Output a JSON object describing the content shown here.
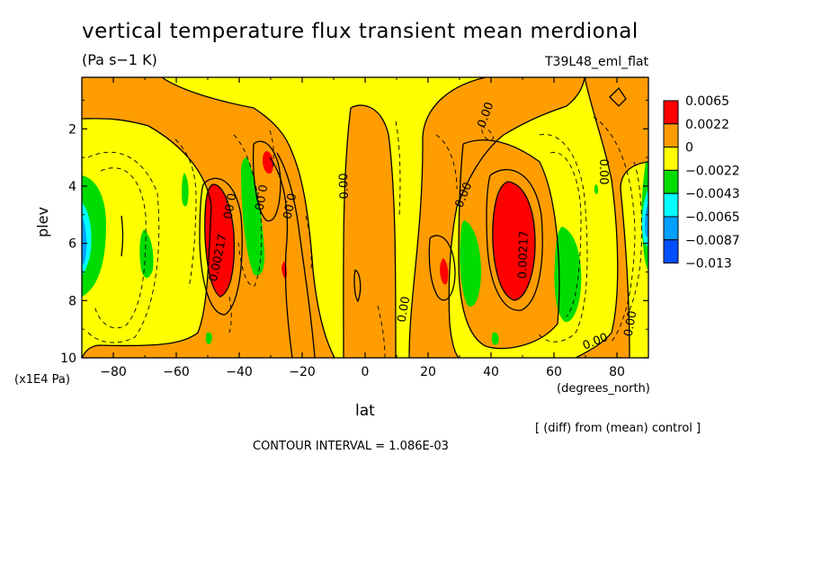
{
  "chart_data": {
    "type": "contour",
    "title": "vertical temperature flux transient mean merdional",
    "units": "(Pa s−1 K)",
    "run_label": "T39L48_eml_flat",
    "xlabel": "lat",
    "x_unit_label": "(degrees_north)",
    "ylabel": "plev",
    "y_unit_label": "(x1E4 Pa)",
    "xlim": [
      -90,
      90
    ],
    "ylim": [
      10,
      0.2
    ],
    "x_ticks": [
      -80,
      -60,
      -40,
      -20,
      0,
      20,
      40,
      60,
      80
    ],
    "x_tick_labels": [
      "−80",
      "−60",
      "−40",
      "−20",
      "0",
      "20",
      "40",
      "60",
      "80"
    ],
    "y_ticks": [
      2,
      4,
      6,
      8,
      10
    ],
    "y_tick_labels": [
      "2",
      "4",
      "6",
      "8",
      "10"
    ],
    "contour_interval_text": "CONTOUR INTERVAL = 1.086E-03",
    "contour_interval": 0.001086,
    "footnote": "[ (diff) from (mean) control ]",
    "legend": {
      "levels": [
        "0.0065",
        "0.0022",
        "0",
        "−0.0022",
        "−0.0043",
        "−0.0065",
        "−0.0087",
        "−0.013"
      ],
      "colors": [
        "#ff0000",
        "#ff9d00",
        "#ffff00",
        "#00dc00",
        "#00ffff",
        "#00a0ff",
        "#0050ff"
      ]
    },
    "colors": {
      "red": "#ff0000",
      "orange": "#ff9d00",
      "yellow": "#ffff00",
      "green": "#00dc00",
      "cyan": "#00ffff",
      "blue": "#00a0ff",
      "deepblue": "#0050ff"
    },
    "features": [
      {
        "kind": "max",
        "lat": -47,
        "plev": 6.0,
        "value_class": "red"
      },
      {
        "kind": "max",
        "lat": 45,
        "plev": 6.0,
        "value_class": "red"
      },
      {
        "kind": "max",
        "lat": -32,
        "plev": 3.4,
        "value_class": "red"
      },
      {
        "kind": "max",
        "lat": 25,
        "plev": 7.0,
        "value_class": "red"
      },
      {
        "kind": "min",
        "lat": -37,
        "plev": 5.5,
        "value_class": "green"
      },
      {
        "kind": "min",
        "lat": 35,
        "plev": 6.6,
        "value_class": "green"
      },
      {
        "kind": "min",
        "lat": -68,
        "plev": 6.5,
        "value_class": "green"
      },
      {
        "kind": "min",
        "lat": 63,
        "plev": 7.2,
        "value_class": "green"
      },
      {
        "kind": "min",
        "lat": -87,
        "plev": 6.0,
        "value_class": "blue"
      },
      {
        "kind": "min",
        "lat": 86,
        "plev": 6.0,
        "value_class": "blue"
      }
    ],
    "contour_labels": [
      {
        "text": "0.00217",
        "lat": -47,
        "plev": 6.5,
        "angle": -78
      },
      {
        "text": "0.00217",
        "lat": 50,
        "plev": 6.4,
        "angle": -88
      },
      {
        "text": "0.00",
        "lat": -43,
        "plev": 4.7,
        "angle": 100
      },
      {
        "text": "0.00",
        "lat": -33,
        "plev": 4.4,
        "angle": 100
      },
      {
        "text": "0.00",
        "lat": -24,
        "plev": 4.7,
        "angle": 102
      },
      {
        "text": "0.00",
        "lat": -7,
        "plev": 4.0,
        "angle": -92
      },
      {
        "text": "0.00",
        "lat": 12,
        "plev": 8.3,
        "angle": -80
      },
      {
        "text": "0.00",
        "lat": 31,
        "plev": 4.3,
        "angle": -68
      },
      {
        "text": "0.00",
        "lat": 38,
        "plev": 1.5,
        "angle": -70
      },
      {
        "text": "0.00",
        "lat": 76,
        "plev": 3.5,
        "angle": 90
      },
      {
        "text": "0.00",
        "lat": 73,
        "plev": 9.4,
        "angle": -22
      },
      {
        "text": "0.00",
        "lat": 84,
        "plev": 8.8,
        "angle": -80
      }
    ]
  },
  "labels": {
    "title": "vertical temperature flux transient mean merdional",
    "units": "(Pa s−1 K)",
    "run_label": "T39L48_eml_flat",
    "ylabel": "plev",
    "y_unit_label": "(x1E4 Pa)",
    "x_unit_label": "(degrees_north)",
    "xlabel": "lat",
    "footnote": "[ (diff) from (mean) control ]",
    "contour_interval_text": "CONTOUR INTERVAL = 1.086E-03"
  }
}
